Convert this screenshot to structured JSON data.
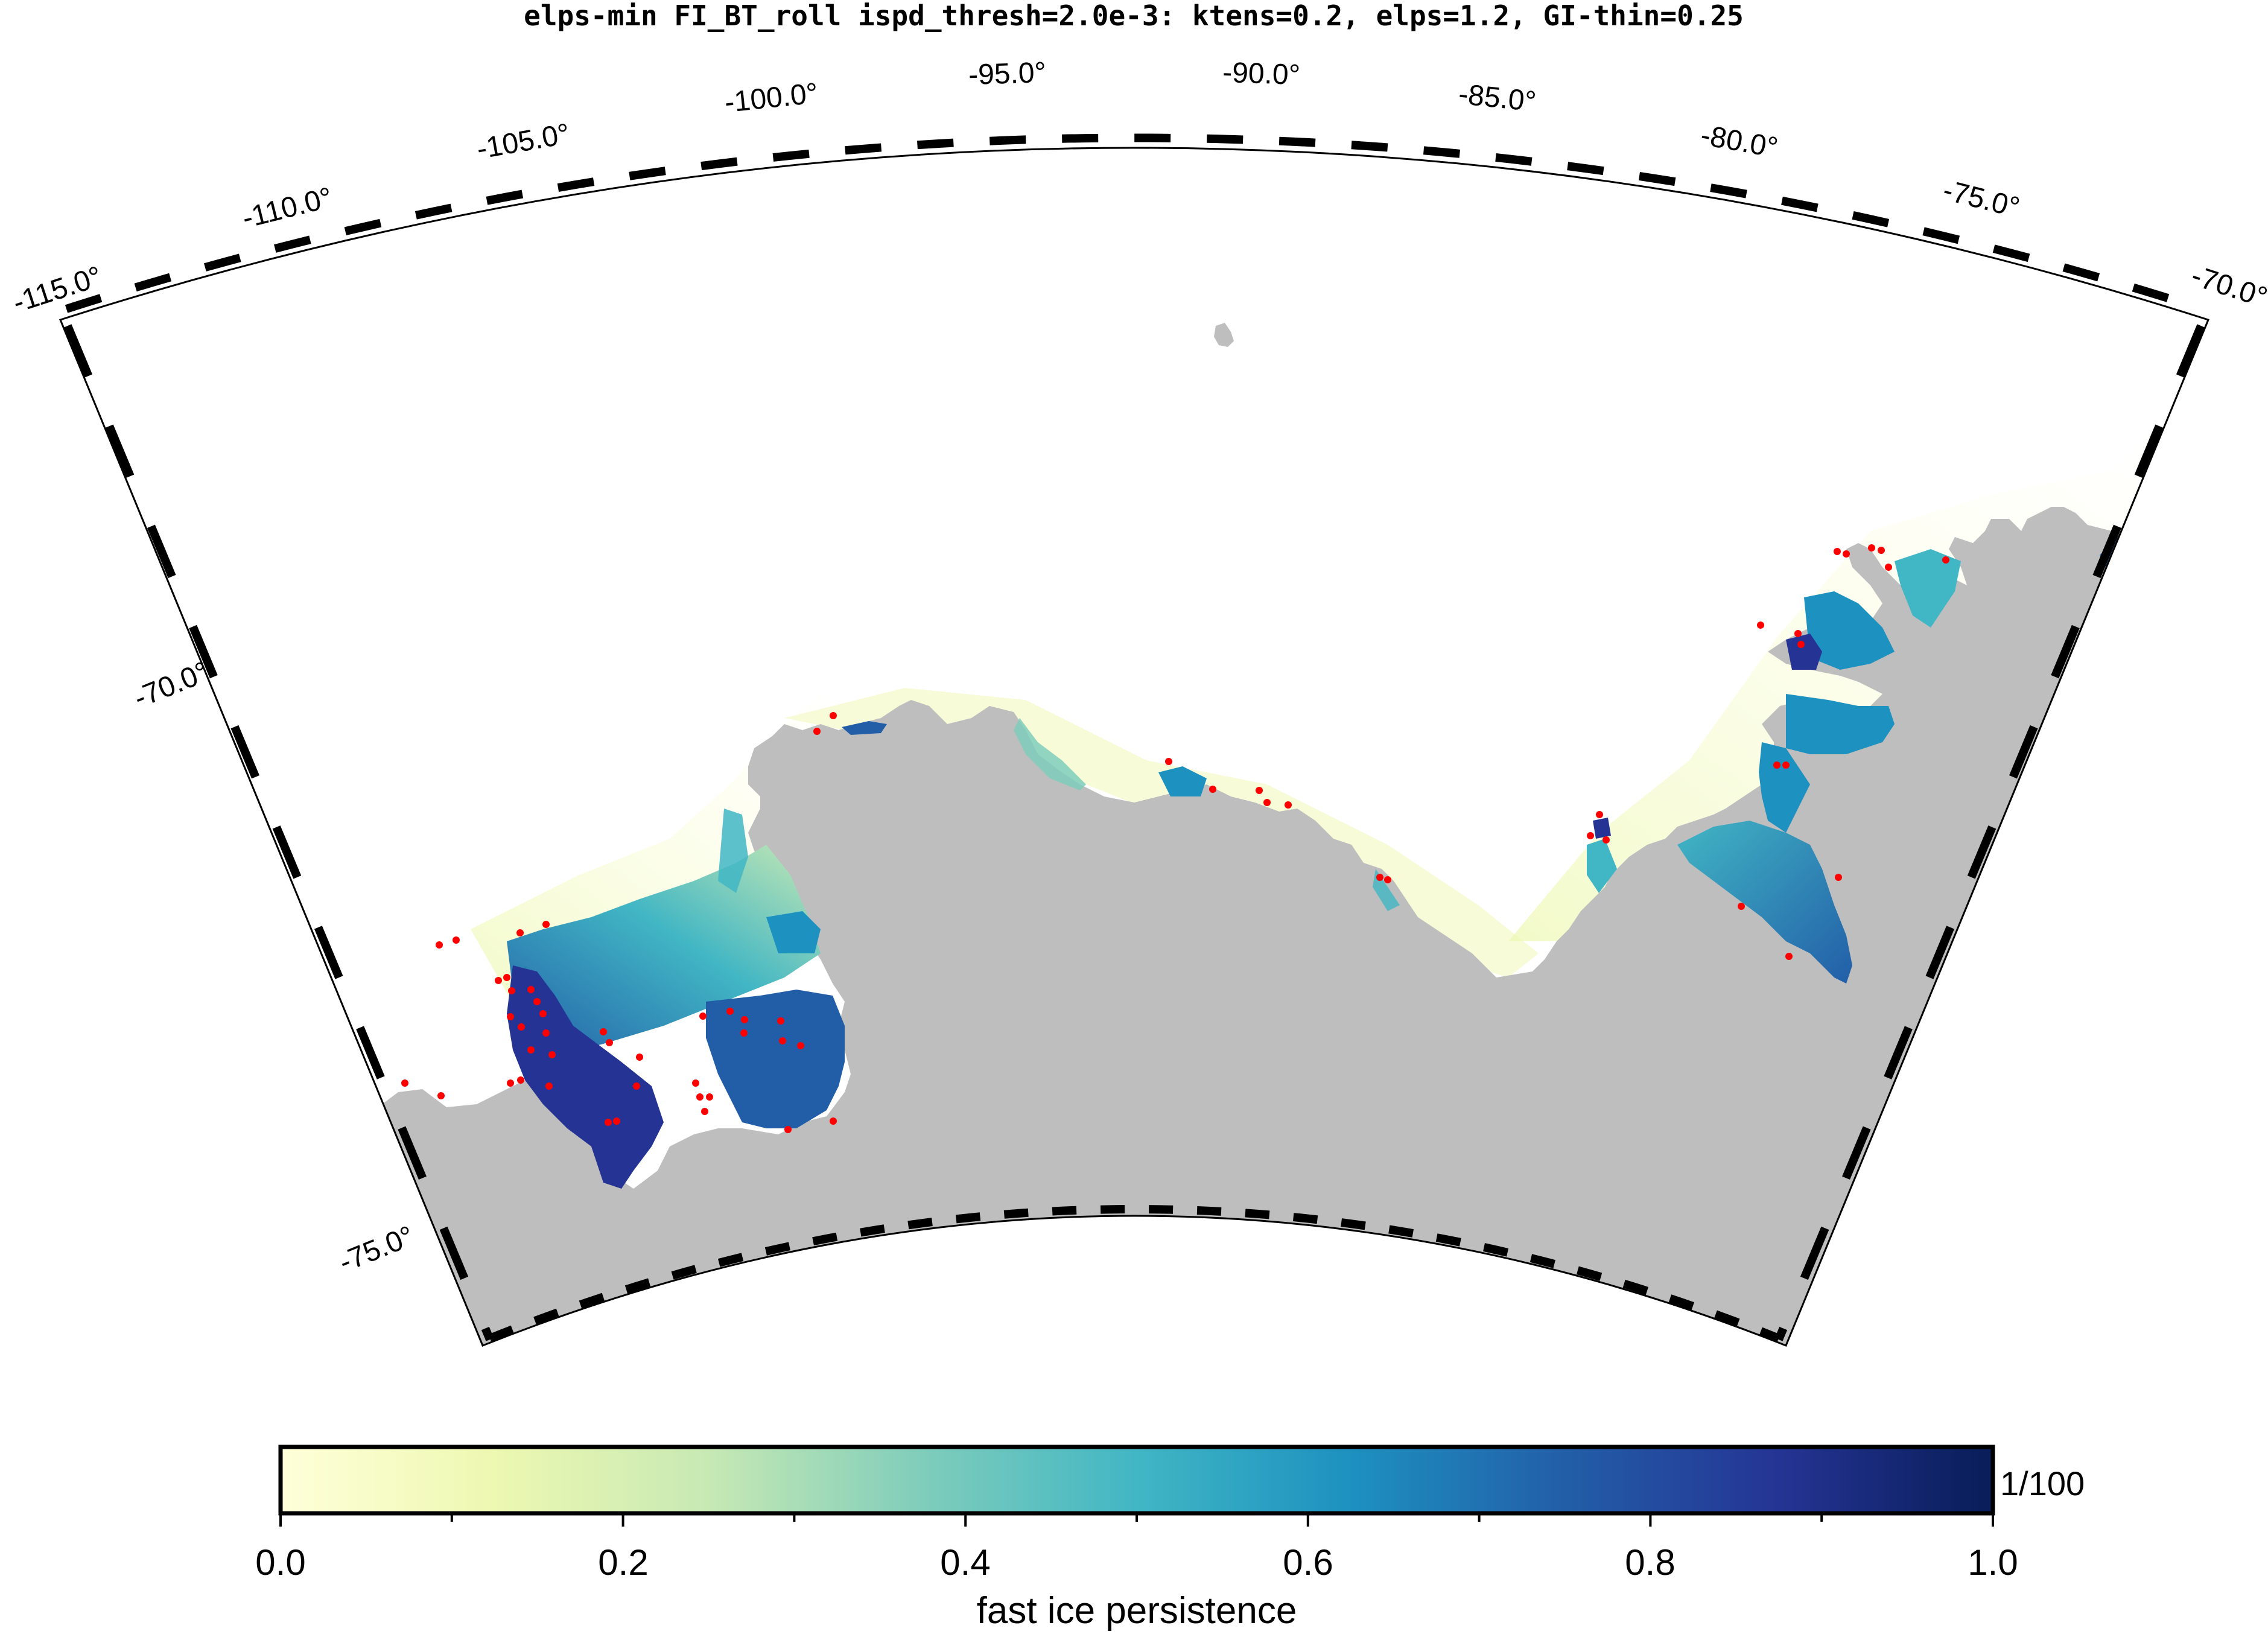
{
  "title": "elps-min FI_BT_roll ispd_thresh=2.0e-3: ktens=0.2, elps=1.2, GI-thin=0.25",
  "map": {
    "projection": "polar stereographic (south), sector -115° to -70° lon, -66° to -75.5° lat",
    "lon_labels": [
      "-115.0°",
      "-110.0°",
      "-105.0°",
      "-100.0°",
      "-95.0°",
      "-90.0°",
      "-85.0°",
      "-80.0°",
      "-75.0°",
      "-70.0°"
    ],
    "lat_labels": [
      "-70.0°",
      "-75.0°"
    ],
    "land_color": "#bebebe",
    "ocean_color": "#ffffff",
    "marker_color": "#ff0000"
  },
  "colorbar": {
    "label": "fast ice persistence",
    "scale_note": "1/100",
    "ticks": [
      "0.0",
      "0.2",
      "0.4",
      "0.6",
      "0.8",
      "1.0"
    ],
    "range": [
      0.0,
      1.0
    ],
    "colors": [
      "#ffffd9",
      "#edf8b1",
      "#c7e9b4",
      "#7fcdbb",
      "#41b6c4",
      "#1d91c0",
      "#225ea8",
      "#253494",
      "#081d58"
    ]
  }
}
